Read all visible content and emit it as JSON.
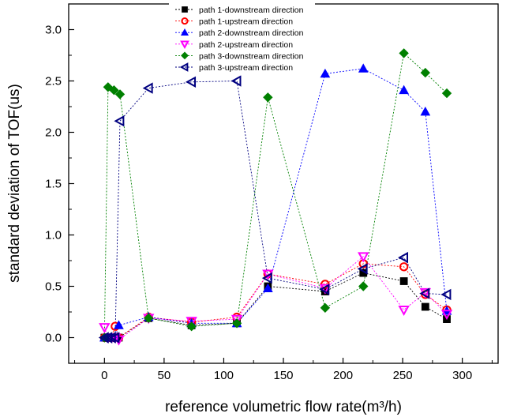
{
  "chart_data": {
    "type": "scatter",
    "title": "",
    "xlabel": "reference volumetric flow rate(m³/h)",
    "ylabel": "standard deviation of TOF(us)",
    "xlim": [
      -30,
      330
    ],
    "ylim": [
      -0.25,
      3.25
    ],
    "xticks": [
      0,
      50,
      100,
      150,
      200,
      250,
      300
    ],
    "yticks": [
      0.0,
      0.5,
      1.0,
      1.5,
      2.0,
      2.5,
      3.0
    ],
    "grid": false,
    "legend_position": "top-center",
    "series": [
      {
        "name": "path 1-downstream direction",
        "marker": "square",
        "color": "#000000",
        "x": [
          0,
          3,
          6,
          9,
          12,
          37,
          73,
          111,
          137,
          185,
          217,
          251,
          269,
          287
        ],
        "y": [
          0.0,
          0.0,
          0.0,
          0.0,
          0.0,
          0.19,
          0.12,
          0.14,
          0.5,
          0.45,
          0.63,
          0.55,
          0.3,
          0.18
        ]
      },
      {
        "name": "path 1-upstream direction",
        "marker": "circle-open",
        "color": "#ff0000",
        "x": [
          0,
          3,
          6,
          9,
          12,
          37,
          73,
          111,
          137,
          185,
          217,
          251,
          269,
          287
        ],
        "y": [
          0.0,
          0.0,
          0.0,
          0.11,
          0.0,
          0.2,
          0.15,
          0.2,
          0.62,
          0.52,
          0.72,
          0.69,
          0.42,
          0.27
        ]
      },
      {
        "name": "path 2-downstream direction",
        "marker": "triangle-up",
        "color": "#0000ff",
        "x": [
          0,
          3,
          6,
          9,
          12,
          37,
          73,
          111,
          137,
          185,
          217,
          251,
          269,
          287
        ],
        "y": [
          0.0,
          0.0,
          0.0,
          0.0,
          0.12,
          0.2,
          0.14,
          0.14,
          0.48,
          2.57,
          2.62,
          2.41,
          2.2,
          0.26
        ]
      },
      {
        "name": "path 2-upstream direction",
        "marker": "triangle-down-open",
        "color": "#ff00ff",
        "x": [
          0,
          3,
          6,
          9,
          12,
          37,
          73,
          111,
          137,
          185,
          217,
          251,
          269,
          287
        ],
        "y": [
          0.1,
          0.0,
          0.0,
          0.0,
          -0.02,
          0.19,
          0.16,
          0.18,
          0.62,
          0.48,
          0.79,
          0.27,
          0.44,
          0.23
        ]
      },
      {
        "name": "path 3-downstream direction",
        "marker": "diamond",
        "color": "#008000",
        "x": [
          0,
          3,
          8,
          13,
          37,
          73,
          111,
          137,
          185,
          217,
          251,
          269,
          287
        ],
        "y": [
          0.0,
          2.44,
          2.41,
          2.37,
          0.19,
          0.11,
          0.14,
          2.34,
          0.29,
          0.5,
          2.77,
          2.58,
          2.38
        ]
      },
      {
        "name": "path 3-upstream direction",
        "marker": "triangle-left-open",
        "color": "#000080",
        "x": [
          0,
          3,
          6,
          9,
          13,
          37,
          73,
          111,
          137,
          185,
          217,
          251,
          269,
          287
        ],
        "y": [
          0.0,
          0.0,
          0.0,
          0.0,
          2.11,
          2.43,
          2.49,
          2.5,
          0.58,
          0.47,
          0.67,
          0.78,
          0.43,
          0.42
        ]
      }
    ]
  }
}
